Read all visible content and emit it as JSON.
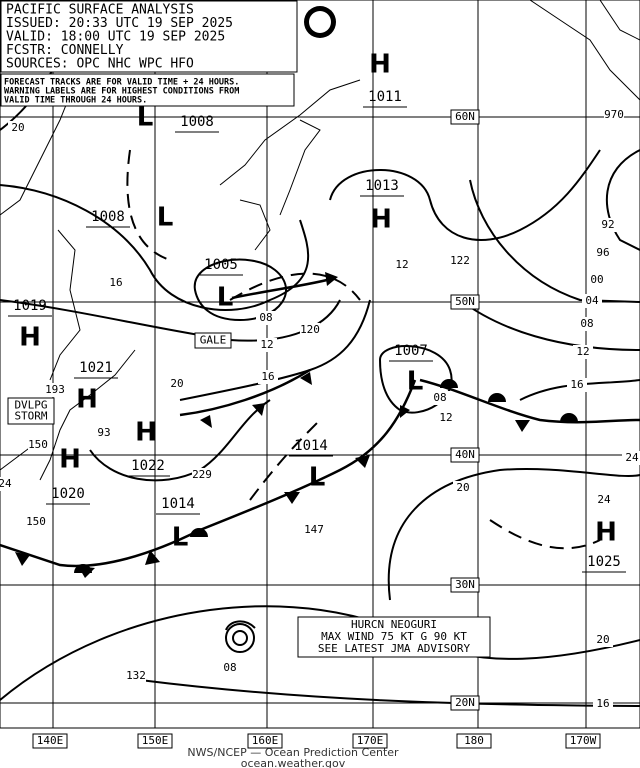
{
  "header": {
    "lines": [
      "PACIFIC SURFACE ANALYSIS",
      "ISSUED: 20:33 UTC 19 SEP 2025",
      "VALID: 18:00 UTC 19 SEP 2025",
      "FCSTR: CONNELLY",
      "SOURCES: OPC NHC WPC HFO"
    ]
  },
  "note": {
    "lines": [
      "FORECAST TRACKS ARE FOR VALID TIME + 24 HOURS.",
      "WARNING LABELS ARE FOR HIGHEST CONDITIONS FROM",
      "VALID TIME THROUGH 24 HOURS."
    ]
  },
  "centers": [
    {
      "symbol": "H",
      "pressure": "1011"
    },
    {
      "symbol": "L",
      "pressure": "1008"
    },
    {
      "symbol": "L",
      "pressure": "1008"
    },
    {
      "symbol": "L",
      "pressure": "1005"
    },
    {
      "symbol": "H",
      "pressure": "1013"
    },
    {
      "symbol": "L",
      "pressure": "1007"
    },
    {
      "symbol": "H",
      "pressure": "1019"
    },
    {
      "symbol": "H",
      "pressure": "1021"
    },
    {
      "symbol": "H",
      "pressure": "1022"
    },
    {
      "symbol": "H",
      "pressure": "1020"
    },
    {
      "symbol": "L",
      "pressure": "1014"
    },
    {
      "symbol": "L",
      "pressure": "1014"
    },
    {
      "symbol": "H",
      "pressure": "1025"
    }
  ],
  "isobar_labels": [
    "20",
    "16",
    "08",
    "12",
    "120",
    "16",
    "20",
    "122",
    "12",
    "93",
    "08",
    "12",
    "229",
    "193",
    "150",
    "24",
    "150",
    "147",
    "20",
    "24",
    "16",
    "12",
    "08",
    "04",
    "00",
    "96",
    "92",
    "970",
    "132",
    "08",
    "20",
    "16",
    "24"
  ],
  "warnings": [
    {
      "lines": [
        "GALE"
      ]
    },
    {
      "lines": [
        "DVLPG",
        "STORM"
      ]
    }
  ],
  "advisory": {
    "lines": [
      "HURCN NEOGURI",
      "MAX WIND 75 KT G 90 KT",
      "SEE LATEST JMA ADVISORY"
    ]
  },
  "latitudes": [
    "60N",
    "50N",
    "40N",
    "30N",
    "20N"
  ],
  "longitudes": [
    "140E",
    "150E",
    "160E",
    "170E",
    "180",
    "170W"
  ],
  "footer": {
    "lines": [
      "NWS/NCEP — Ocean Prediction Center",
      "ocean.weather.gov"
    ]
  }
}
